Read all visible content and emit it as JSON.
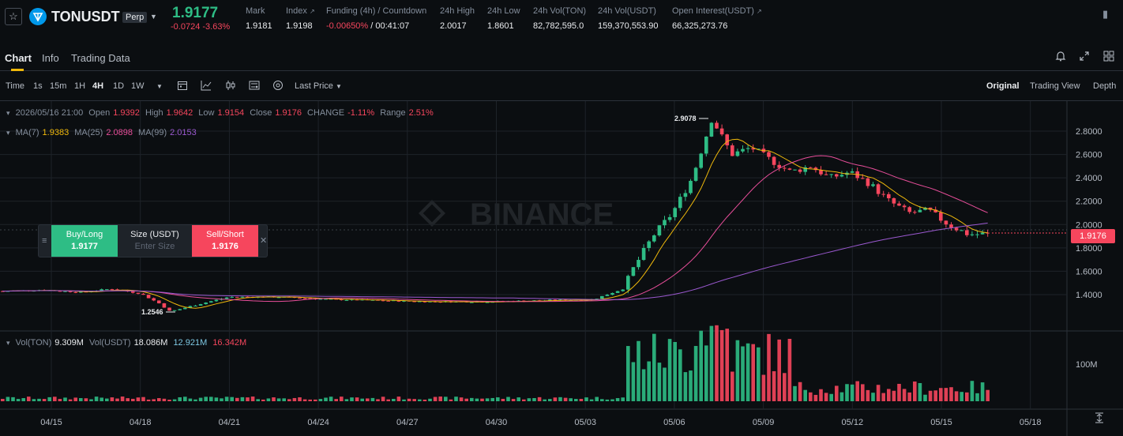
{
  "header": {
    "symbol": "TONUSDT",
    "contract_type": "Perp",
    "last_price": "1.9177",
    "change": "-0.0724 -3.63%",
    "stats": [
      {
        "label": "Mark",
        "value": "1.9181"
      },
      {
        "label": "Index",
        "value": "1.9198"
      },
      {
        "label": "Funding (4h) / Countdown",
        "value_a": "-0.00650%",
        "value_b": " / 00:41:07"
      },
      {
        "label": "24h High",
        "value": "2.0017"
      },
      {
        "label": "24h Low",
        "value": "1.8601"
      },
      {
        "label": "24h Vol(TON)",
        "value": "82,782,595.0"
      },
      {
        "label": "24h Vol(USDT)",
        "value": "159,370,553.90"
      },
      {
        "label": "Open Interest(USDT)",
        "value": "66,325,273.76"
      }
    ]
  },
  "tabs": [
    "Chart",
    "Info",
    "Trading Data"
  ],
  "toolbar": {
    "intervals": [
      "Time",
      "1s",
      "15m",
      "1H",
      "4H",
      "1D",
      "1W"
    ],
    "active_interval": "4H",
    "price_type": "Last Price",
    "views": [
      "Original",
      "Trading View",
      "Depth"
    ],
    "active_view": "Original"
  },
  "ohlc": {
    "date": "2026/05/16 21:00",
    "open_label": "Open",
    "open": "1.9392",
    "high_label": "High",
    "high": "1.9642",
    "low_label": "Low",
    "low": "1.9154",
    "close_label": "Close",
    "close": "1.9176",
    "change_label": "CHANGE",
    "change": "-1.11%",
    "range_label": "Range",
    "range": "2.51%"
  },
  "ma": {
    "ma7_label": "MA(7)",
    "ma7": "1.9383",
    "ma25_label": "MA(25)",
    "ma25": "2.0898",
    "ma99_label": "MA(99)",
    "ma99": "2.0153"
  },
  "vol": {
    "ton_label": "Vol(TON)",
    "ton": "9.309M",
    "usdt_label": "Vol(USDT)",
    "usdt": "18.086M",
    "ma1": "12.921M",
    "ma2": "16.342M"
  },
  "trade_widget": {
    "buy_label": "Buy/Long",
    "buy_price": "1.9177",
    "size_label": "Size (USDT)",
    "size_placeholder": "Enter Size",
    "sell_label": "Sell/Short",
    "sell_price": "1.9176"
  },
  "watermark": "BINANCE",
  "current_price_tag": "1.9176",
  "high_marker": "2.9078",
  "low_marker": "1.2546",
  "colors": {
    "up": "#2ebd85",
    "down": "#f6465d",
    "ma7": "#f0b90b",
    "ma25": "#e84e9a",
    "ma99": "#9b59d0",
    "accent": "#f0b90b"
  },
  "chart_data": {
    "type": "candlestick",
    "price_axis": [
      "2.8000",
      "2.6000",
      "2.4000",
      "2.2000",
      "2.0000",
      "1.8000",
      "1.6000",
      "1.4000"
    ],
    "volume_axis": [
      "100M"
    ],
    "date_axis": [
      "04/15",
      "04/18",
      "04/21",
      "04/24",
      "04/27",
      "04/30",
      "05/03",
      "05/06",
      "05/09",
      "05/12",
      "05/15",
      "05/18"
    ],
    "close_trend": [
      [
        0,
        1.43
      ],
      [
        0.04,
        1.44
      ],
      [
        0.08,
        1.42
      ],
      [
        0.11,
        1.45
      ],
      [
        0.14,
        1.41
      ],
      [
        0.16,
        1.32
      ],
      [
        0.17,
        1.2546
      ],
      [
        0.2,
        1.32
      ],
      [
        0.23,
        1.38
      ],
      [
        0.28,
        1.38
      ],
      [
        0.33,
        1.36
      ],
      [
        0.38,
        1.35
      ],
      [
        0.43,
        1.34
      ],
      [
        0.5,
        1.34
      ],
      [
        0.55,
        1.35
      ],
      [
        0.6,
        1.36
      ],
      [
        0.63,
        1.45
      ],
      [
        0.64,
        1.62
      ],
      [
        0.66,
        1.9
      ],
      [
        0.68,
        2.1
      ],
      [
        0.7,
        2.4
      ],
      [
        0.72,
        2.9078
      ],
      [
        0.74,
        2.6
      ],
      [
        0.76,
        2.66
      ],
      [
        0.78,
        2.55
      ],
      [
        0.8,
        2.45
      ],
      [
        0.82,
        2.5
      ],
      [
        0.84,
        2.4
      ],
      [
        0.86,
        2.45
      ],
      [
        0.88,
        2.35
      ],
      [
        0.9,
        2.2
      ],
      [
        0.92,
        2.1
      ],
      [
        0.94,
        2.12
      ],
      [
        0.96,
        2.0
      ],
      [
        0.98,
        1.9176
      ]
    ]
  }
}
